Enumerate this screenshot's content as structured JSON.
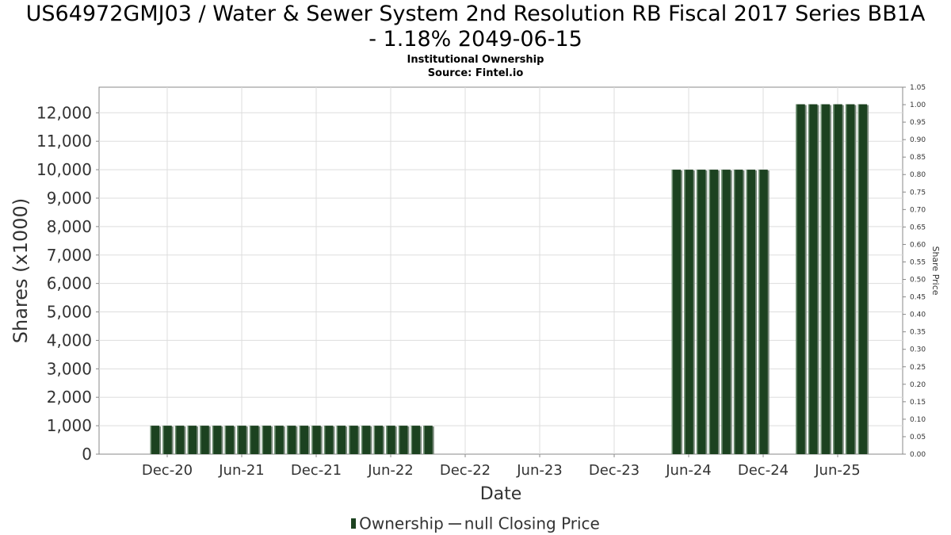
{
  "title_line1": "US64972GMJ03 / Water & Sewer System 2nd Resolution RB Fiscal 2017 Series BB1A",
  "title_line2": "- 1.18% 2049-06-15",
  "subtitle1": "Institutional Ownership",
  "subtitle2": "Source: Fintel.io",
  "colors": {
    "bar": "#1c4220",
    "bar_shadow": "#7a8a7c",
    "grid": "#dddddd"
  },
  "chart_data": {
    "type": "bar",
    "xlabel": "Date",
    "ylabel": "Shares (x1000)",
    "y2label": "Share Price",
    "ylim": [
      0,
      12900
    ],
    "y2lim": [
      0,
      1.05
    ],
    "grid": true,
    "legend_placement": "bottom",
    "x_ticks": [
      "Dec-20",
      "Jun-21",
      "Dec-21",
      "Jun-22",
      "Dec-22",
      "Jun-23",
      "Dec-23",
      "Jun-24",
      "Dec-24",
      "Jun-25"
    ],
    "y_ticks": [
      "0",
      "1,000",
      "2,000",
      "3,000",
      "4,000",
      "5,000",
      "6,000",
      "7,000",
      "8,000",
      "9,000",
      "10,000",
      "11,000",
      "12,000"
    ],
    "y2_ticks": [
      "0.00",
      "0.05",
      "0.10",
      "0.15",
      "0.20",
      "0.25",
      "0.30",
      "0.35",
      "0.40",
      "0.45",
      "0.50",
      "0.55",
      "0.60",
      "0.65",
      "0.70",
      "0.75",
      "0.80",
      "0.85",
      "0.90",
      "0.95",
      "1.00",
      "1.05"
    ],
    "series": [
      {
        "name": "Ownership",
        "x": [
          "2020-11",
          "2020-12",
          "2021-01",
          "2021-02",
          "2021-03",
          "2021-04",
          "2021-05",
          "2021-06",
          "2021-07",
          "2021-08",
          "2021-09",
          "2021-10",
          "2021-11",
          "2021-12",
          "2022-01",
          "2022-02",
          "2022-03",
          "2022-04",
          "2022-05",
          "2022-06",
          "2022-07",
          "2022-08",
          "2022-09",
          "2024-05",
          "2024-06",
          "2024-07",
          "2024-08",
          "2024-09",
          "2024-10",
          "2024-11",
          "2024-12",
          "2025-03",
          "2025-04",
          "2025-05",
          "2025-06",
          "2025-07",
          "2025-08"
        ],
        "values": [
          1000,
          1000,
          1000,
          1000,
          1000,
          1000,
          1000,
          1000,
          1000,
          1000,
          1000,
          1000,
          1000,
          1000,
          1000,
          1000,
          1000,
          1000,
          1000,
          1000,
          1000,
          1000,
          1000,
          10000,
          10000,
          10000,
          10000,
          10000,
          10000,
          10000,
          10000,
          12300,
          12300,
          12300,
          12300,
          12300,
          12300
        ]
      },
      {
        "name": "null Closing Price",
        "x": [],
        "values": []
      }
    ]
  },
  "legend": {
    "ownership": "Ownership",
    "price": "null Closing Price"
  }
}
